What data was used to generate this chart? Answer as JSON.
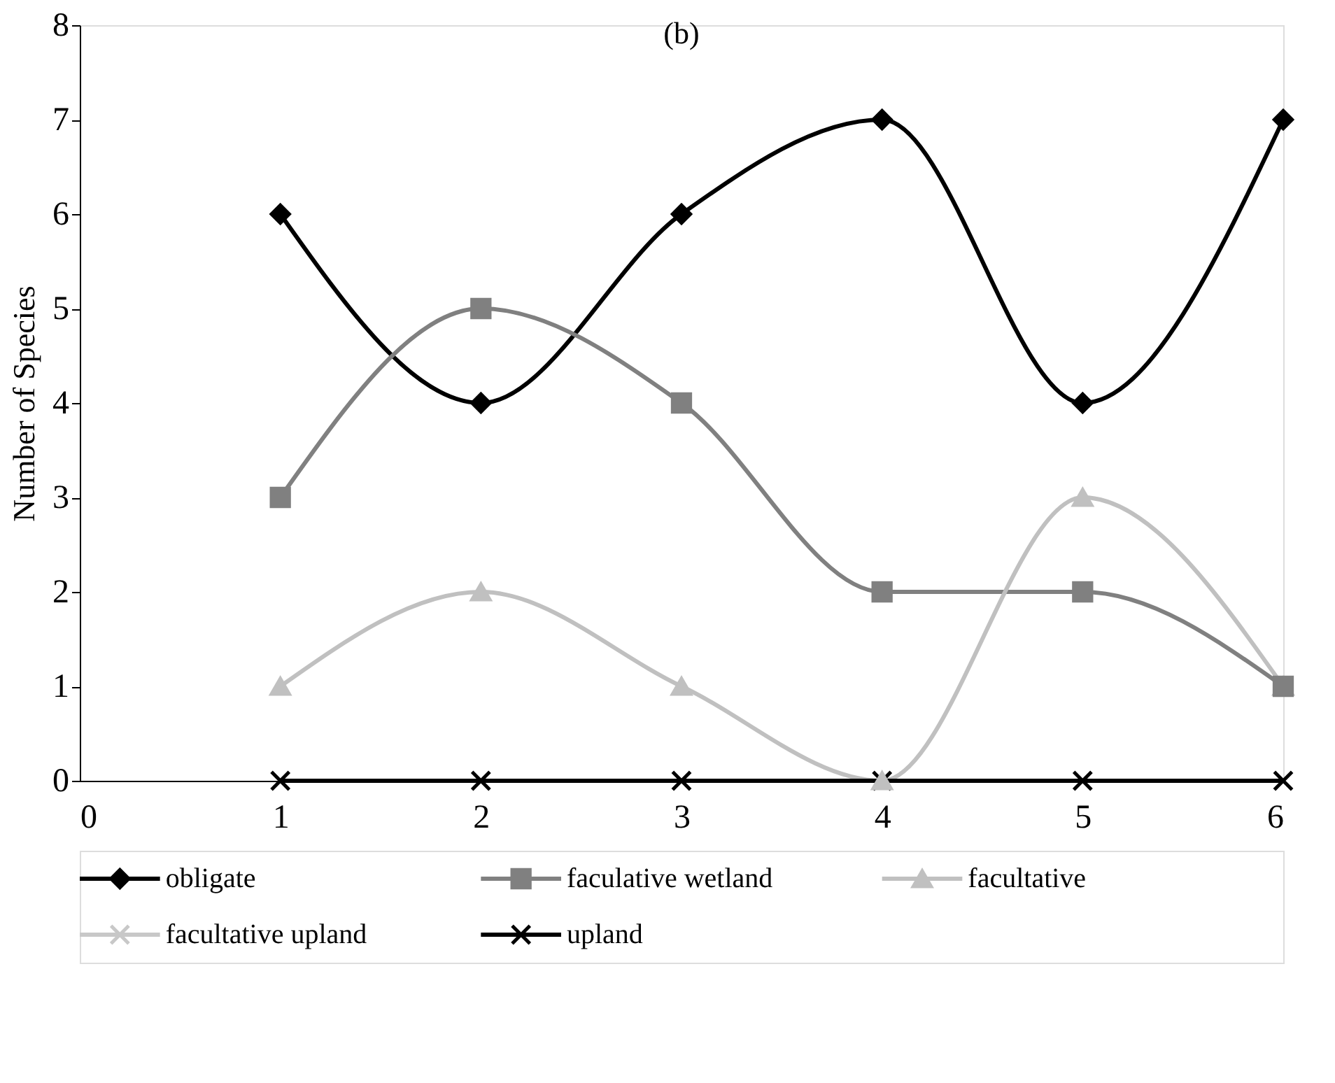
{
  "chart_data": {
    "type": "line",
    "title": "(b)",
    "ylabel": "Number of Species",
    "x": [
      1,
      2,
      3,
      4,
      5,
      6
    ],
    "series": [
      {
        "name": "obligate",
        "color": "#000000",
        "marker": "diamond",
        "values": [
          6,
          4,
          6,
          7,
          4,
          7
        ]
      },
      {
        "name": "faculative wetland",
        "color": "#808080",
        "marker": "square",
        "values": [
          3,
          5,
          4,
          2,
          2,
          1
        ]
      },
      {
        "name": "facultative",
        "color": "#c0c0c0",
        "marker": "triangle",
        "values": [
          1,
          2,
          1,
          0,
          3,
          1
        ]
      },
      {
        "name": "facultative upland",
        "color": "#c8c8c8",
        "marker": "cross",
        "values": [
          null,
          null,
          null,
          null,
          null,
          null
        ]
      },
      {
        "name": "upland",
        "color": "#000000",
        "marker": "cross",
        "values": [
          0,
          0,
          0,
          0,
          0,
          0
        ]
      }
    ],
    "xlim": [
      0,
      6
    ],
    "xticks": [
      0,
      1,
      2,
      3,
      4,
      5,
      6
    ],
    "ylim": [
      0,
      8
    ],
    "yticks": [
      0,
      1,
      2,
      3,
      4,
      5,
      6,
      7,
      8
    ],
    "grid": false,
    "legend": "bottom",
    "line_style": "solid"
  }
}
